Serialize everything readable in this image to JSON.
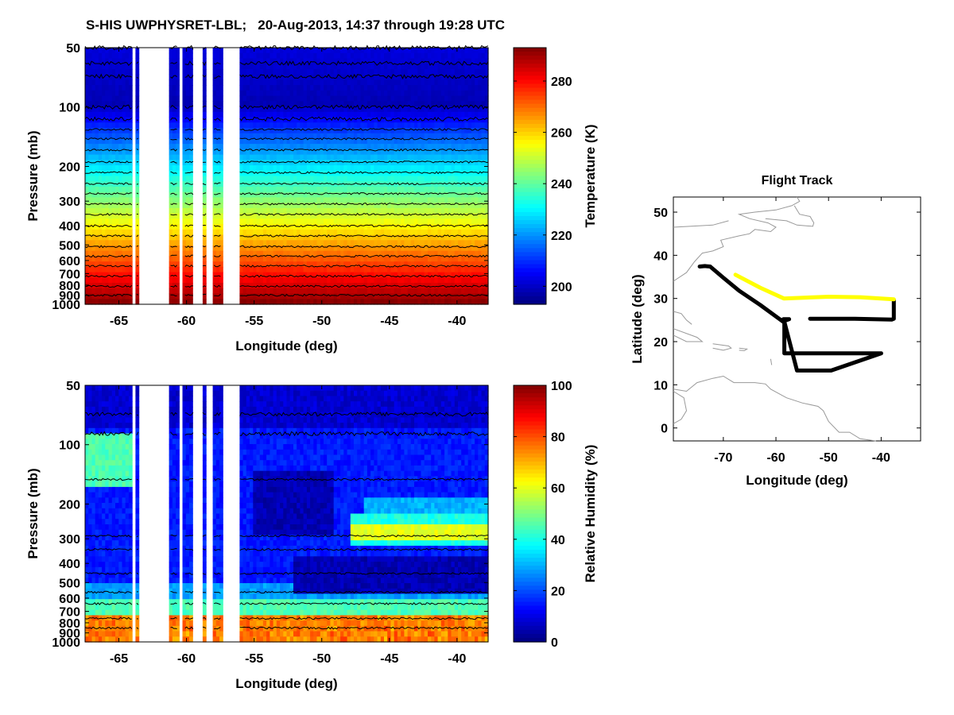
{
  "figure_title": "S-HIS UWPHYSRET-LBL;   20-Aug-2013, 14:37 through 19:28 UTC",
  "chart_data": [
    {
      "id": "temperature",
      "type": "heatmap",
      "title": "",
      "xlabel": "Longitude (deg)",
      "ylabel": "Pressure (mb)",
      "xlim": [
        -67.5,
        -37.7
      ],
      "x_ticks": [
        -65,
        -60,
        -55,
        -50,
        -45,
        -40
      ],
      "y_scale": "log",
      "ylim": [
        1000,
        50
      ],
      "y_ticks": [
        50,
        100,
        200,
        300,
        400,
        500,
        600,
        700,
        800,
        900,
        1000
      ],
      "colorbar": {
        "label": "Temperature (K)",
        "range": [
          193,
          293
        ],
        "ticks": [
          200,
          220,
          240,
          260,
          280
        ],
        "colormap": "jet"
      },
      "contours": "black isotherms at regular intervals",
      "data_gaps_longitude": [
        [
          -64.0,
          -63.8
        ],
        [
          -63.5,
          -61.3
        ],
        [
          -60.6,
          -60.2
        ],
        [
          -59.5,
          -58.9
        ],
        [
          -58.5,
          -58.0
        ],
        [
          -57.4,
          -56.1
        ]
      ],
      "profile_description": "Temperature decreases monotonically with altitude: ~290 K near 1000 mb, ~260 K near 400 mb, ~225 K near 200 mb, ~200 K near 70-100 mb"
    },
    {
      "id": "relative-humidity",
      "type": "heatmap",
      "title": "",
      "xlabel": "Longitude (deg)",
      "ylabel": "Pressure (mb)",
      "xlim": [
        -67.5,
        -37.7
      ],
      "x_ticks": [
        -65,
        -60,
        -55,
        -50,
        -45,
        -40
      ],
      "y_scale": "log",
      "ylim": [
        1000,
        50
      ],
      "y_ticks": [
        50,
        100,
        200,
        300,
        400,
        500,
        600,
        700,
        800,
        900,
        1000
      ],
      "colorbar": {
        "label": "Relative Humidity (%)",
        "range": [
          0,
          100
        ],
        "ticks": [
          0,
          20,
          40,
          60,
          80,
          100
        ],
        "colormap": "jet"
      },
      "contours": "black RH contours",
      "data_gaps_longitude": [
        [
          -64.0,
          -63.8
        ],
        [
          -63.5,
          -61.3
        ],
        [
          -60.6,
          -60.2
        ],
        [
          -59.5,
          -58.9
        ],
        [
          -58.5,
          -58.0
        ],
        [
          -57.4,
          -56.1
        ]
      ],
      "features": [
        "Moist boundary layer (70-90%) below ~750 mb",
        "Dry layer (<10%) near 400-500 mb east of -50",
        "Moist layer (50-70%) near 250-300 mb from -48 to -38",
        "Dry region (~5%) 150-280 mb from -55 to -49",
        "Moist layer (30-50%) near 100-150 mb west of -64"
      ]
    },
    {
      "id": "flight-track",
      "type": "line",
      "title": "Flight Track",
      "xlabel": "Longitude (deg)",
      "ylabel": "Latitude (deg)",
      "xlim": [
        -79.5,
        -32.5
      ],
      "ylim": [
        -3,
        53.5
      ],
      "x_ticks": [
        -70,
        -60,
        -50,
        -40
      ],
      "y_ticks": [
        0,
        10,
        20,
        30,
        40,
        50
      ],
      "series": [
        {
          "name": "track-black",
          "color": "#000000",
          "points": [
            [
              -74.5,
              37.4
            ],
            [
              -73.5,
              37.5
            ],
            [
              -72.5,
              37.4
            ],
            [
              -70,
              34.8
            ],
            [
              -67,
              31.8
            ],
            [
              -63,
              28.5
            ],
            [
              -58.5,
              24.5
            ],
            [
              -58.6,
              25.2
            ],
            [
              -57.5,
              25.2
            ],
            [
              -58.4,
              24.8
            ],
            [
              -58.4,
              17.3
            ],
            [
              -40,
              17.3
            ],
            [
              -49.5,
              13.3
            ],
            [
              -56,
              13.3
            ],
            [
              -58.4,
              24.6
            ]
          ]
        },
        {
          "name": "track-black-east",
          "color": "#000000",
          "points": [
            [
              -53.5,
              25.3
            ],
            [
              -45,
              25.3
            ],
            [
              -38,
              25.1
            ],
            [
              -37.6,
              25.3
            ],
            [
              -37.6,
              29.7
            ]
          ]
        },
        {
          "name": "track-yellow",
          "color": "#ffff00",
          "points": [
            [
              -67.7,
              35.5
            ],
            [
              -63,
              32.5
            ],
            [
              -58.5,
              30.0
            ],
            [
              -50,
              30.4
            ],
            [
              -44,
              30.3
            ],
            [
              -37.6,
              29.8
            ]
          ]
        }
      ],
      "coastlines_color": "#999999"
    }
  ]
}
